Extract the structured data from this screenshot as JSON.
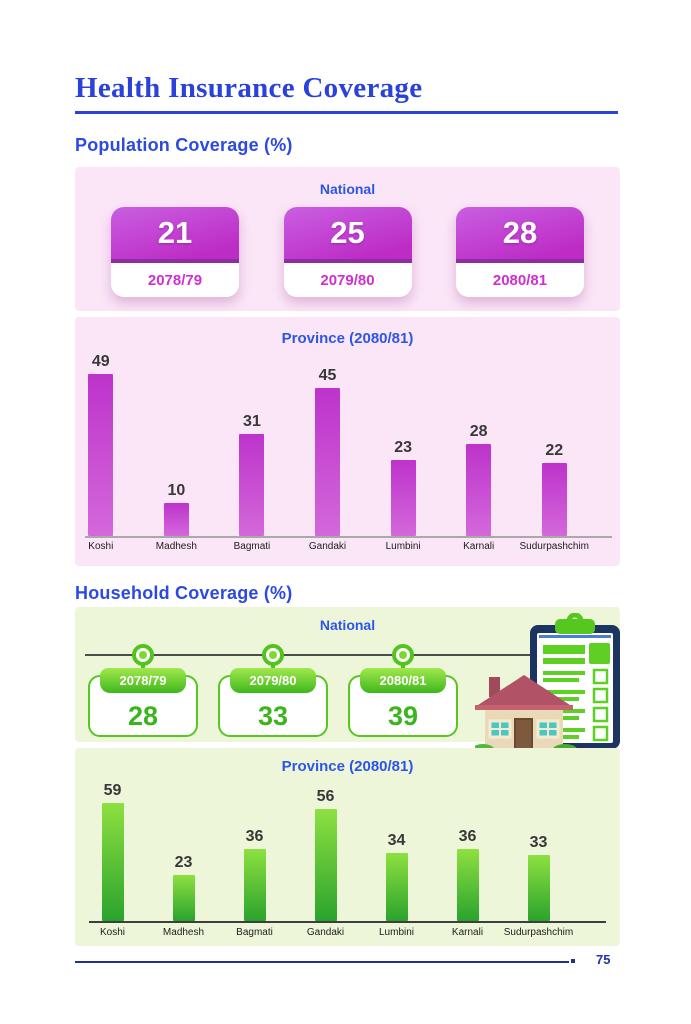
{
  "page": {
    "title": "Health Insurance Coverage",
    "page_number": "75"
  },
  "population": {
    "heading": "Population Coverage (%)",
    "national": {
      "label": "National",
      "cards": [
        {
          "value": "21",
          "year": "2078/79"
        },
        {
          "value": "25",
          "year": "2079/80"
        },
        {
          "value": "28",
          "year": "2080/81"
        }
      ]
    }
  },
  "household": {
    "heading": "Household Coverage (%)",
    "national": {
      "label": "National",
      "cards": [
        {
          "year": "2078/79",
          "value": "28"
        },
        {
          "year": "2079/80",
          "value": "33"
        },
        {
          "year": "2080/81",
          "value": "39"
        }
      ]
    },
    "illustration": "clipboard-and-house-icon"
  },
  "chart_data": [
    {
      "type": "bar",
      "section": "Population Coverage (%)",
      "title": "Province (2080/81)",
      "categories": [
        "Koshi",
        "Madhesh",
        "Bagmati",
        "Gandaki",
        "Lumbini",
        "Karnali",
        "Sudurpashchim"
      ],
      "values": [
        49,
        10,
        31,
        45,
        23,
        28,
        22
      ],
      "ylim": [
        0,
        52
      ],
      "xlabel": "",
      "ylabel": "",
      "grid": false,
      "value_labels": true,
      "bar_color": "#c53ccf"
    },
    {
      "type": "bar",
      "section": "Household Coverage (%)",
      "title": "Province (2080/81)",
      "categories": [
        "Koshi",
        "Madhesh",
        "Bagmati",
        "Gandaki",
        "Lumbini",
        "Karnali",
        "Sudurpashchim"
      ],
      "values": [
        59,
        23,
        36,
        56,
        34,
        36,
        33
      ],
      "ylim": [
        0,
        62
      ],
      "xlabel": "",
      "ylabel": "",
      "grid": false,
      "value_labels": true,
      "bar_color": "#55c61f"
    }
  ],
  "colors": {
    "accent_blue": "#2b42da",
    "panel_title_blue": "#2d55e6",
    "pink_panel": "#fbe6f7",
    "green_panel": "#eef6da",
    "magenta_card": "#bd2cc5",
    "magenta_year": "#d02fd0",
    "green_accent": "#55c71f",
    "green_number": "#3bb51d",
    "footer_navy": "#23308f"
  }
}
